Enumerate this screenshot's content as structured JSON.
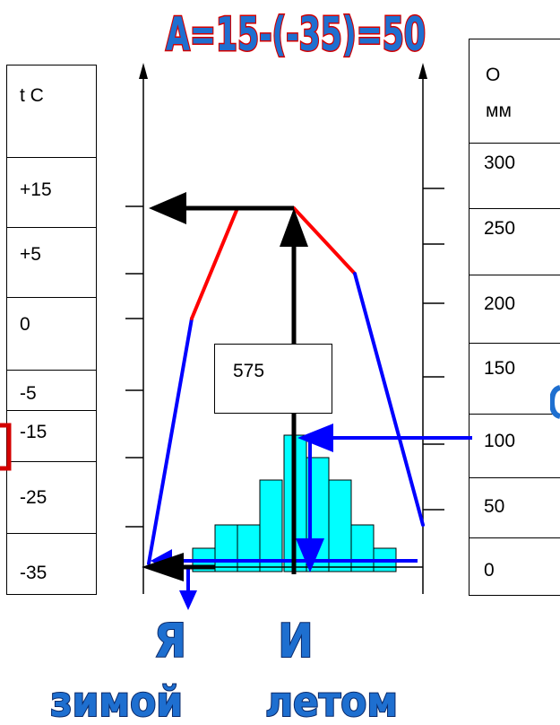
{
  "title": "А=15-(-35)=50",
  "temp_table": {
    "header": "t С",
    "rows": [
      "+15",
      "+5",
      "0",
      "-5",
      "-15",
      "-25",
      "-35"
    ]
  },
  "precip_table": {
    "header_line1": "О",
    "header_line2": "мм",
    "rows": [
      "300",
      "250",
      "200",
      "150",
      "100",
      "50",
      "0"
    ]
  },
  "annual_precip": "575",
  "labels": {
    "winter_letter": "Я",
    "winter_word": "зимой",
    "summer_letter": "И",
    "summer_word": "летом"
  },
  "colors": {
    "warm_line": "#ff0000",
    "cold_line": "#0000ff",
    "bars": "#00ffff",
    "arrows": "#000000",
    "title_fill": "#1e6fd0",
    "title_outline": "#d40000"
  }
}
